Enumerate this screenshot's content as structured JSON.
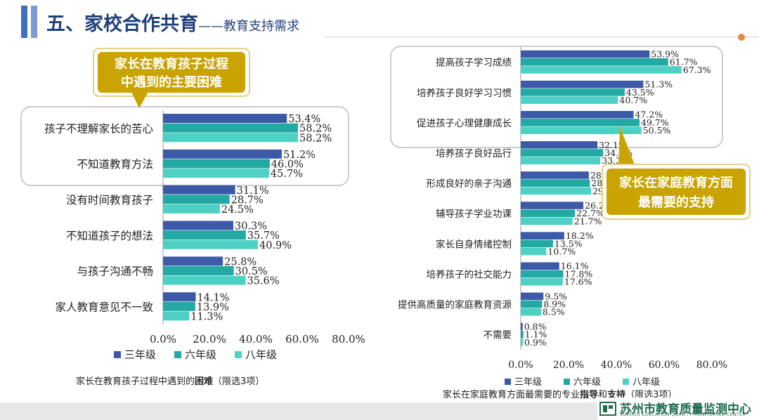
{
  "header": {
    "title": "五、家校合作共育",
    "subtitle": "——教育支持需求"
  },
  "callouts": {
    "left": {
      "line1": "家长在教育孩子过程",
      "line2": "中遇到的主要困难"
    },
    "right": {
      "line1": "家长在家庭教育方面",
      "line2": "最需要的支持"
    }
  },
  "colors": {
    "grade3": "#3d5aa8",
    "grade6": "#23a9a3",
    "grade8": "#4fd0c5",
    "callout": "#c9a300",
    "title": "#1f3f7a"
  },
  "footer": {
    "logo_text": "苏州市教育质量监测中心",
    "logo_sub": "SUZHOU EDUCATION QUALITY MONITORING CENTER"
  },
  "chart_data": [
    {
      "type": "bar",
      "orientation": "horizontal",
      "title": "家长在教育孩子过程中遇到的困难（限选3项）",
      "caption_pre": "家长在教育孩子过程中遇到的",
      "caption_bold": "困难",
      "caption_post": "（限选3项）",
      "categories": [
        "孩子不理解家长的苦心",
        "不知道教育方法",
        "没有时间教育孩子",
        "不知道孩子的想法",
        "与孩子沟通不畅",
        "家人教育意见不一致"
      ],
      "series": [
        {
          "name": "三年级",
          "values": [
            53.4,
            51.2,
            31.1,
            30.3,
            25.8,
            14.1
          ]
        },
        {
          "name": "六年级",
          "values": [
            58.2,
            46.0,
            28.7,
            35.7,
            30.5,
            13.9
          ]
        },
        {
          "name": "八年级",
          "values": [
            58.2,
            45.7,
            24.5,
            40.9,
            35.6,
            11.3
          ]
        }
      ],
      "xlim": [
        0,
        80
      ],
      "xticks": [
        "0.0%",
        "20.0%",
        "40.0%",
        "60.0%",
        "80.0%"
      ],
      "legend": [
        "三年级",
        "六年级",
        "八年级"
      ]
    },
    {
      "type": "bar",
      "orientation": "horizontal",
      "title": "家长在家庭教育方面最需要的专业指导和支持（限选3项）",
      "caption_pre": "家长在家庭教育方面最需要的专业",
      "caption_bold1": "指导",
      "caption_mid": "和",
      "caption_bold2": "支持",
      "caption_post": "（限选3项）",
      "categories": [
        "提高孩子学习成绩",
        "培养孩子良好学习习惯",
        "促进孩子心理健康成长",
        "培养孩子良好品行",
        "形成良好的亲子沟通",
        "辅导孩子学业功课",
        "家长自身情绪控制",
        "培养孩子的社交能力",
        "提供高质量的家庭教育资源",
        "不需要"
      ],
      "series": [
        {
          "name": "三年级",
          "values": [
            53.9,
            51.3,
            47.2,
            32.1,
            28.5,
            26.2,
            18.2,
            16.1,
            9.5,
            0.8
          ]
        },
        {
          "name": "六年级",
          "values": [
            61.7,
            43.5,
            49.7,
            34.5,
            28.9,
            22.7,
            13.5,
            17.8,
            8.9,
            1.1
          ]
        },
        {
          "name": "八年级",
          "values": [
            67.3,
            40.7,
            50.5,
            33.3,
            29.4,
            21.7,
            10.7,
            17.6,
            8.5,
            0.9
          ]
        }
      ],
      "xlim": [
        0,
        80
      ],
      "xticks": [
        "0.0%",
        "20.0%",
        "40.0%",
        "60.0%",
        "80.0%"
      ],
      "legend": [
        "三年级",
        "六年级",
        "八年级"
      ]
    }
  ]
}
